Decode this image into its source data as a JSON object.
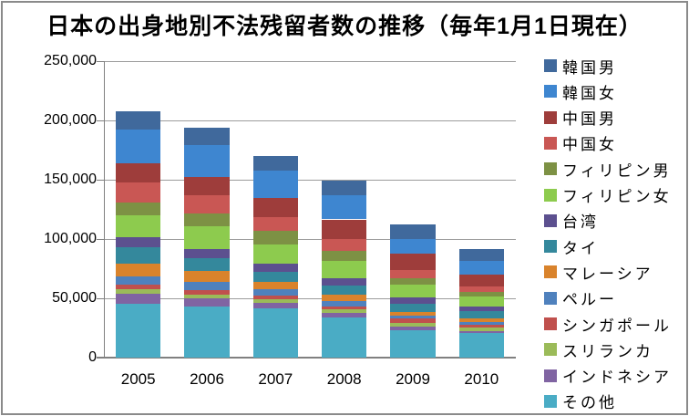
{
  "title": "日本の出身地別不法残留者数の推移（毎年1月1日現在）",
  "chart_data": {
    "type": "bar",
    "stacked": true,
    "title": "日本の出身地別不法残留者数の推移（毎年1月1日現在）",
    "categories": [
      "2005",
      "2006",
      "2007",
      "2008",
      "2009",
      "2010"
    ],
    "series": [
      {
        "name": "韓国男",
        "color": "#40699C",
        "values": [
          15350,
          14900,
          12800,
          12050,
          12250,
          10200
        ]
      },
      {
        "name": "韓国女",
        "color": "#3E86D0",
        "values": [
          28150,
          26800,
          23050,
          20400,
          12800,
          11750
        ]
      },
      {
        "name": "中国男",
        "color": "#9E3D3B",
        "values": [
          16100,
          15350,
          16100,
          16650,
          13300,
          9450
        ]
      },
      {
        "name": "中国女",
        "color": "#C95754",
        "values": [
          16600,
          15350,
          11250,
          10200,
          7150,
          5100
        ]
      },
      {
        "name": "フィリピン男",
        "color": "#7D9144",
        "values": [
          10750,
          10950,
          11500,
          8200,
          5100,
          3850
        ]
      },
      {
        "name": "フィリピン女",
        "color": "#8DCB4E",
        "values": [
          18700,
          18950,
          16600,
          14300,
          10750,
          8200
        ]
      },
      {
        "name": "台湾",
        "color": "#5C508F",
        "values": [
          8900,
          7700,
          6400,
          6150,
          5650,
          4100
        ]
      },
      {
        "name": "タイ",
        "color": "#34889C",
        "values": [
          13300,
          10900,
          8950,
          7700,
          6650,
          5650
        ]
      },
      {
        "name": "マレーシア",
        "color": "#D9832C",
        "values": [
          10600,
          9000,
          5900,
          5850,
          3050,
          3050
        ]
      },
      {
        "name": "ペルー",
        "color": "#4F81BD",
        "values": [
          7300,
          7150,
          5600,
          4350,
          3050,
          2550
        ]
      },
      {
        "name": "シンガポール",
        "color": "#C0504D",
        "values": [
          3850,
          3600,
          2550,
          2550,
          3300,
          2550
        ]
      },
      {
        "name": "スリランカ",
        "color": "#9BBB59",
        "values": [
          3800,
          3300,
          3050,
          2600,
          3300,
          2550
        ]
      },
      {
        "name": "インドネシア",
        "color": "#8064A2",
        "values": [
          8450,
          6900,
          4600,
          4050,
          3050,
          2050
        ]
      },
      {
        "name": "その他",
        "color": "#4AACC5",
        "values": [
          45250,
          42950,
          41700,
          33750,
          23000,
          20450
        ]
      }
    ],
    "totals": [
      207100,
      193800,
      170050,
      148800,
      112400,
      91500
    ],
    "ylim": [
      0,
      250000
    ],
    "ytick_interval": 50000,
    "yticks": [
      "250,000",
      "200,000",
      "150,000",
      "100,000",
      "50,000",
      "0"
    ],
    "xlabel": "",
    "ylabel": "",
    "grid": true,
    "legend_position": "right",
    "legend_order": "top-of-stack-first"
  }
}
